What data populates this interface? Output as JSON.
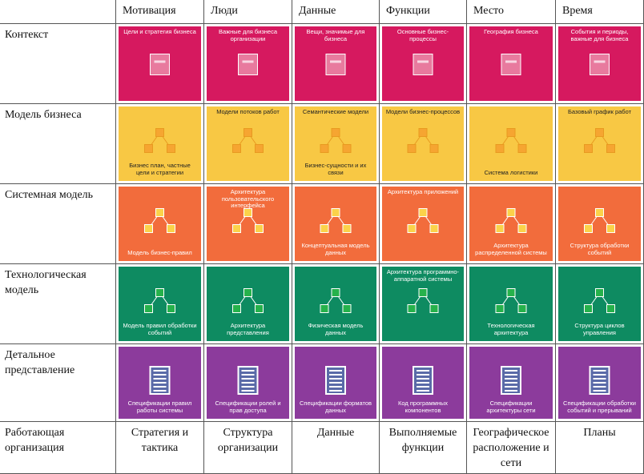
{
  "table": {
    "columns": [
      "Мотивация",
      "Люди",
      "Данные",
      "Функции",
      "Место",
      "Время"
    ],
    "rows": [
      {
        "label": "Контекст",
        "cells": [
          [
            "Цели и стратегия бизнеса"
          ],
          [
            "Важные для бизнеса организации"
          ],
          [
            "Вещи, значимые для бизнеса"
          ],
          [
            "Основные бизнес-процессы"
          ],
          [
            "География бизнеса"
          ],
          [
            "События и периоды, важные для бизнеса"
          ]
        ]
      },
      {
        "label": "Модель бизнеса",
        "cells": [
          [
            "Бизнес план, частные цели и стратегии"
          ],
          [
            "Модели потоков работ"
          ],
          [
            "Семантические модели",
            "Бизнес-сущности и их связи"
          ],
          [
            "Модели бизнес-процессов"
          ],
          [
            "Система логистики"
          ],
          [
            "Базовый график работ"
          ]
        ]
      },
      {
        "label": "Системная модель",
        "cells": [
          [
            "Модель бизнес-правил"
          ],
          [
            "Архитектура пользовательского интерфейса"
          ],
          [
            "Концептуальная модель данных"
          ],
          [
            "Архитектура приложений"
          ],
          [
            "Архитектура распределенной системы"
          ],
          [
            "Структура обработки событий"
          ]
        ]
      },
      {
        "label": "Технологическая модель",
        "cells": [
          [
            "Модель правил обработки событий"
          ],
          [
            "Архитектура представления"
          ],
          [
            "Физическая модель данных"
          ],
          [
            "Архитектура программно-аппаратной системы"
          ],
          [
            "Технологическая архитектура"
          ],
          [
            "Структура циклов управления"
          ]
        ]
      },
      {
        "label": "Детальное представление",
        "cells": [
          [
            "Спецификации правил работы системы"
          ],
          [
            "Спецификации ролей и прав доступа"
          ],
          [
            "Спецификации форматов данных"
          ],
          [
            "Код программных компонентов"
          ],
          [
            "Спецификации архитектуры сети"
          ],
          [
            "Спецификации обработки событий и прерываний"
          ]
        ]
      },
      {
        "label": "Работающая организация",
        "cells": [
          "Стратегия и тактика",
          "Структура организации",
          "Данные",
          "Выполняемые функции",
          "Географическое расположение и сети",
          "Планы"
        ]
      }
    ]
  }
}
